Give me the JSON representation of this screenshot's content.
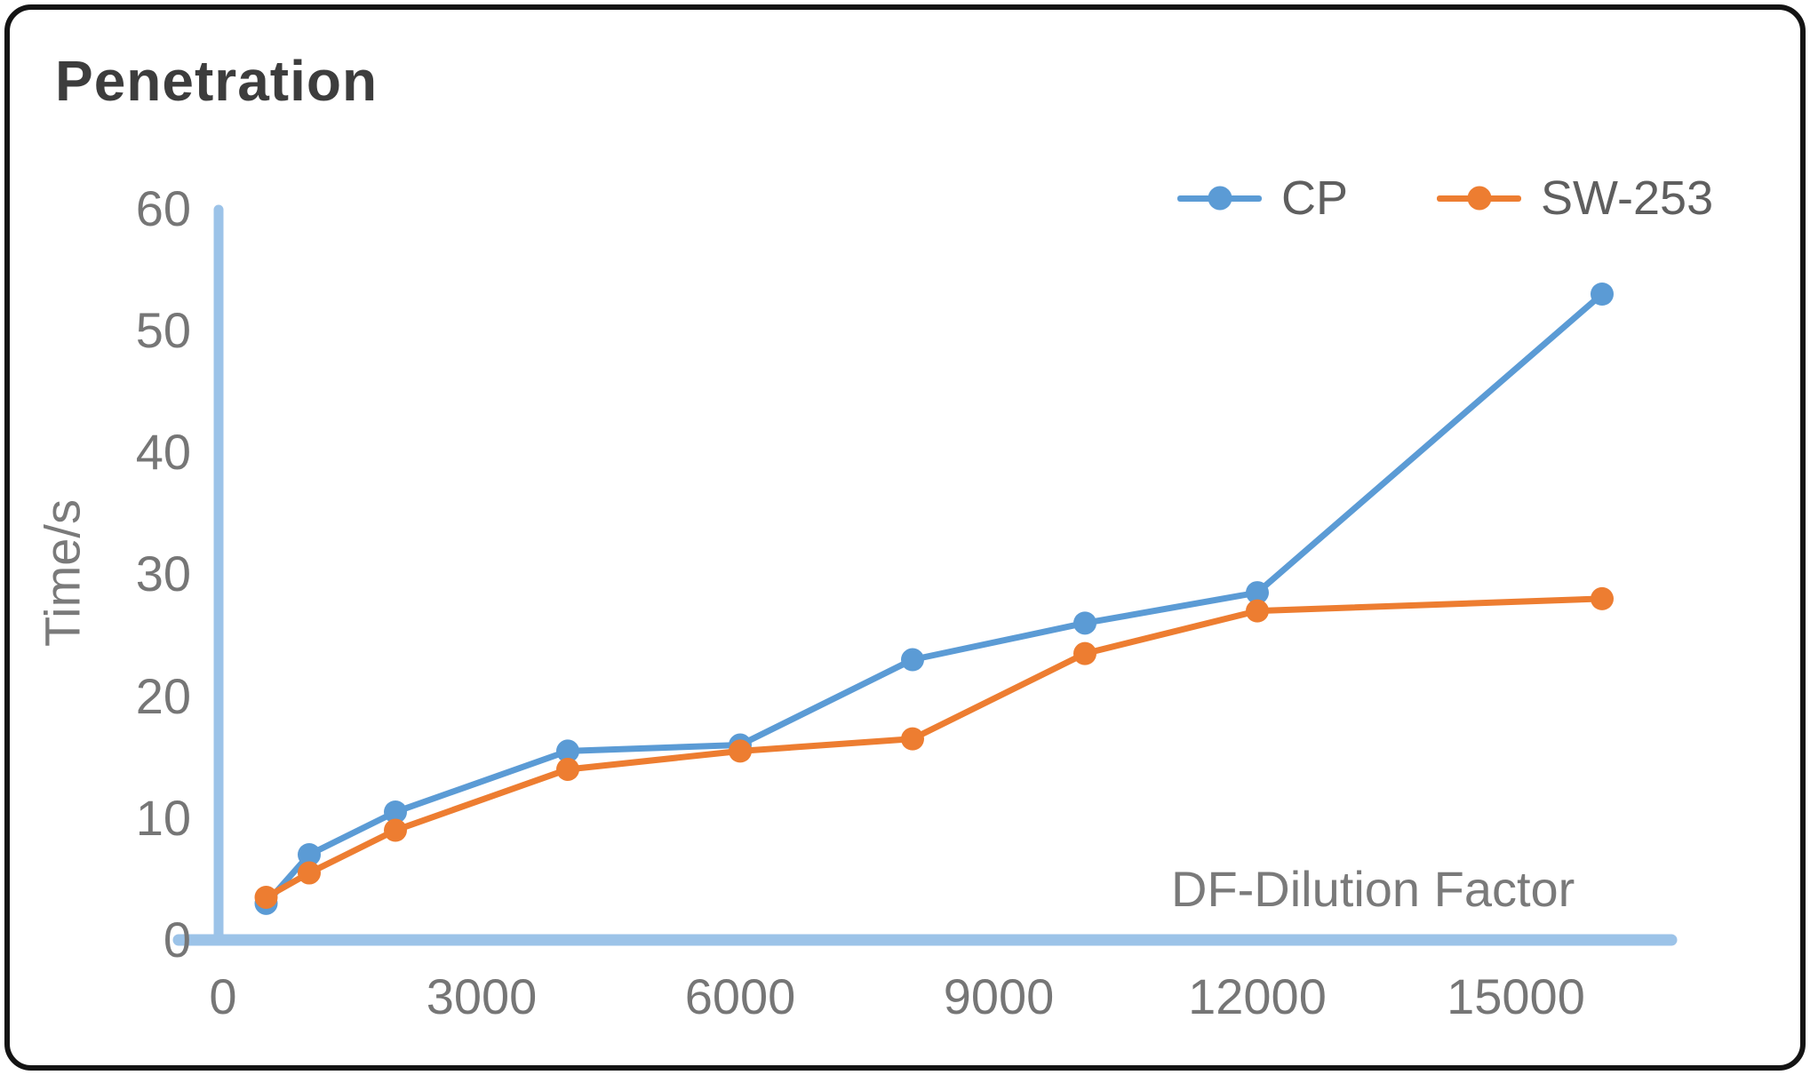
{
  "chart_data": {
    "type": "line",
    "title": "Penetration",
    "ylabel": "Time/s",
    "xlabel": "DF-Dilution Factor",
    "x": [
      500,
      1000,
      2000,
      4000,
      6000,
      8000,
      10000,
      12000,
      16000
    ],
    "series": [
      {
        "name": "CP",
        "color": "#5B9BD5",
        "values": [
          3,
          7,
          10.5,
          15.5,
          16,
          23,
          26,
          28.5,
          53
        ]
      },
      {
        "name": "SW-253",
        "color": "#ED7D31",
        "values": [
          3.5,
          5.5,
          9,
          14,
          15.5,
          16.5,
          23.5,
          27,
          28
        ]
      }
    ],
    "x_ticks": [
      "0",
      "3000",
      "6000",
      "9000",
      "12000",
      "15000"
    ],
    "x_tick_values": [
      0,
      3000,
      6000,
      9000,
      12000,
      15000
    ],
    "y_ticks": [
      "60",
      "50",
      "40",
      "30",
      "20",
      "10",
      "0"
    ],
    "y_tick_values": [
      60,
      50,
      40,
      30,
      20,
      10,
      0
    ],
    "xlim": [
      0,
      17500
    ],
    "ylim": [
      0,
      60
    ],
    "grid": false,
    "legend_position": "top-right",
    "axis_color": "#9CC3E8",
    "tick_text_color": "#767676",
    "title_color": "#3d3d3d"
  }
}
